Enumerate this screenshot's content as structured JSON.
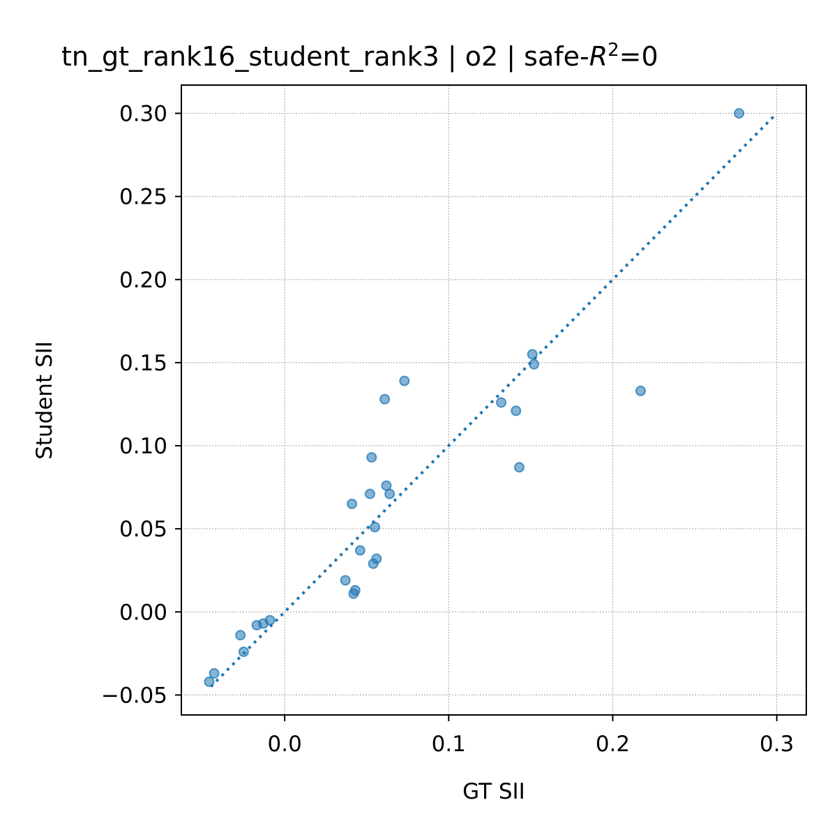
{
  "chart_data": {
    "type": "scatter",
    "title_main": "tn_gt_rank16_student_rank3 | o2 | safe-",
    "title_var": "R",
    "title_sup": "2",
    "title_tail": "=0",
    "xlabel": "GT SII",
    "ylabel": "Student SII",
    "xlim": [
      -0.063,
      0.318
    ],
    "ylim": [
      -0.062,
      0.317
    ],
    "xticks": [
      0.0,
      0.1,
      0.2,
      0.3
    ],
    "xtick_labels": [
      "0.0",
      "0.1",
      "0.2",
      "0.3"
    ],
    "yticks": [
      -0.05,
      0.0,
      0.05,
      0.1,
      0.15,
      0.2,
      0.25,
      0.3
    ],
    "ytick_labels": [
      "−0.05",
      "0.00",
      "0.05",
      "0.10",
      "0.15",
      "0.20",
      "0.25",
      "0.30"
    ],
    "grid": true,
    "point_color": "#1f77b4",
    "line_color": "#1f77b4",
    "reference_line": {
      "x": [
        -0.045,
        0.298
      ],
      "y": [
        -0.045,
        0.298
      ],
      "style": "dotted"
    },
    "points": [
      {
        "x": 0.277,
        "y": 0.3
      },
      {
        "x": 0.151,
        "y": 0.155
      },
      {
        "x": 0.152,
        "y": 0.149
      },
      {
        "x": 0.217,
        "y": 0.133
      },
      {
        "x": 0.132,
        "y": 0.126
      },
      {
        "x": 0.141,
        "y": 0.121
      },
      {
        "x": 0.143,
        "y": 0.087
      },
      {
        "x": 0.073,
        "y": 0.139
      },
      {
        "x": 0.061,
        "y": 0.128
      },
      {
        "x": 0.053,
        "y": 0.093
      },
      {
        "x": 0.062,
        "y": 0.076
      },
      {
        "x": 0.064,
        "y": 0.071
      },
      {
        "x": 0.052,
        "y": 0.071
      },
      {
        "x": 0.041,
        "y": 0.065
      },
      {
        "x": 0.055,
        "y": 0.051
      },
      {
        "x": 0.046,
        "y": 0.037
      },
      {
        "x": 0.056,
        "y": 0.032
      },
      {
        "x": 0.054,
        "y": 0.029
      },
      {
        "x": 0.037,
        "y": 0.019
      },
      {
        "x": 0.043,
        "y": 0.013
      },
      {
        "x": 0.042,
        "y": 0.011
      },
      {
        "x": -0.009,
        "y": -0.005
      },
      {
        "x": -0.013,
        "y": -0.007
      },
      {
        "x": -0.017,
        "y": -0.008
      },
      {
        "x": -0.027,
        "y": -0.014
      },
      {
        "x": -0.025,
        "y": -0.024
      },
      {
        "x": -0.043,
        "y": -0.037
      },
      {
        "x": -0.046,
        "y": -0.042
      }
    ]
  }
}
